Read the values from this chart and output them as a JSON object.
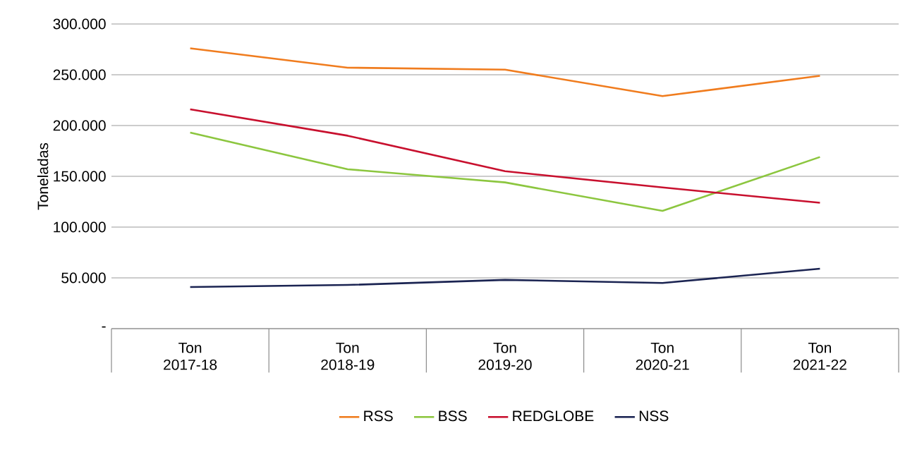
{
  "chart_data": {
    "type": "line",
    "ylabel": "Toneladas",
    "categories": [
      "Ton 2017-18",
      "Ton 2018-19",
      "Ton 2019-20",
      "Ton 2020-21",
      "Ton 2021-22"
    ],
    "series": [
      {
        "name": "RSS",
        "color": "#f07c1e",
        "values": [
          276000,
          257000,
          255000,
          229000,
          249000
        ]
      },
      {
        "name": "BSS",
        "color": "#8cc63f",
        "values": [
          193000,
          157000,
          144000,
          116000,
          169000
        ]
      },
      {
        "name": "REDGLOBE",
        "color": "#c8102e",
        "values": [
          216000,
          190000,
          155000,
          139000,
          124000
        ]
      },
      {
        "name": "NSS",
        "color": "#1b2452",
        "values": [
          41000,
          43000,
          48000,
          45000,
          59000
        ]
      }
    ],
    "ylim": [
      0,
      300000
    ],
    "yticks": [
      {
        "value": 0,
        "label": "-"
      },
      {
        "value": 50000,
        "label": "50.000"
      },
      {
        "value": 100000,
        "label": "100.000"
      },
      {
        "value": 150000,
        "label": "150.000"
      },
      {
        "value": 200000,
        "label": "200.000"
      },
      {
        "value": 250000,
        "label": "250.000"
      },
      {
        "value": 300000,
        "label": "300.000"
      }
    ],
    "grid": "y",
    "legend": "bottom",
    "marker": "none",
    "line_style": "solid"
  }
}
